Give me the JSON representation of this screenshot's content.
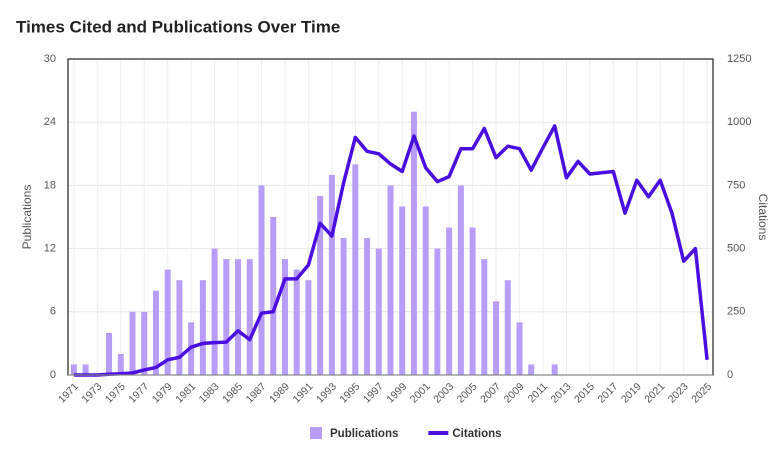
{
  "chart_data": {
    "type": "bar_line",
    "title": "Times Cited and Publications Over Time",
    "ylabel": "Publications",
    "y2label": "Citations",
    "categories": [
      "1971",
      null,
      "1973",
      null,
      "1975",
      null,
      "1977",
      null,
      "1979",
      null,
      "1981",
      null,
      "1983",
      null,
      "1985",
      null,
      "1987",
      null,
      "1989",
      null,
      "1991",
      null,
      "1993",
      null,
      "1995",
      null,
      "1997",
      null,
      "1999",
      null,
      "2001",
      null,
      "2003",
      null,
      "2005",
      null,
      "2007",
      null,
      "2009",
      null,
      "2011",
      null,
      "2013",
      null,
      "2015",
      null,
      "2017",
      null,
      "2019",
      null,
      "2021",
      null,
      "2023",
      null,
      "2025"
    ],
    "series": [
      {
        "name": "Publications",
        "type": "bar",
        "color": "#b79df7",
        "values": [
          1,
          1,
          0,
          4,
          2,
          6,
          6,
          8,
          10,
          9,
          5,
          9,
          12,
          11,
          11,
          11,
          18,
          15,
          11,
          10,
          9,
          17,
          19,
          13,
          20,
          13,
          12,
          18,
          16,
          25,
          16,
          12,
          14,
          18,
          14,
          11,
          7,
          9,
          5,
          1,
          0,
          1,
          0,
          0,
          0,
          0,
          0,
          0,
          0,
          0,
          0,
          0,
          0,
          0,
          0
        ]
      },
      {
        "name": "Citations",
        "type": "line",
        "axis": "y2",
        "color": "#4a0fe0",
        "values": [
          0,
          0,
          0,
          3,
          5,
          8,
          20,
          30,
          60,
          70,
          110,
          125,
          128,
          130,
          175,
          140,
          245,
          250,
          380,
          380,
          435,
          600,
          550,
          760,
          940,
          885,
          875,
          835,
          805,
          945,
          820,
          765,
          785,
          895,
          895,
          975,
          860,
          905,
          895,
          810,
          900,
          985,
          780,
          845,
          795,
          800,
          805,
          640,
          770,
          705,
          770,
          640,
          450,
          500,
          60
        ]
      }
    ],
    "ylim": [
      0,
      30
    ],
    "yticks": [
      0,
      6,
      12,
      18,
      24,
      30
    ],
    "y2lim": [
      0,
      1250
    ],
    "y2ticks": [
      0,
      250,
      500,
      750,
      1000,
      1250
    ],
    "grid": true,
    "legend": "bottom"
  }
}
